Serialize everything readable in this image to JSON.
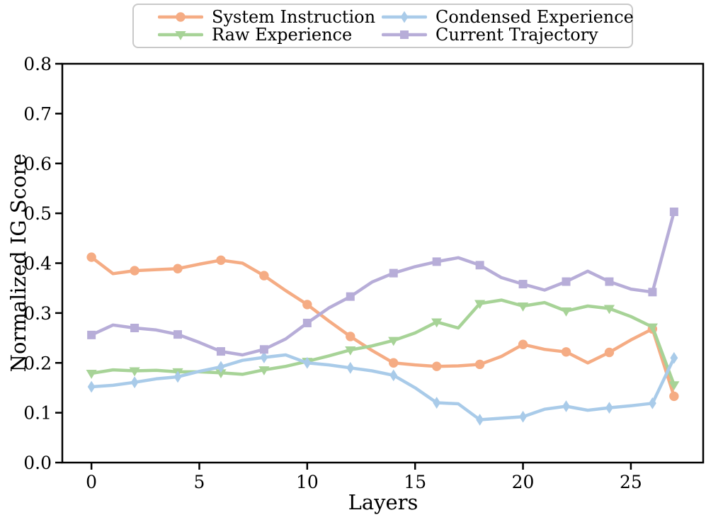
{
  "chart_data": {
    "type": "line",
    "title": "",
    "xlabel": "Layers",
    "ylabel": "Normalized IG Score",
    "xlim": [
      -1.35,
      28.35
    ],
    "ylim": [
      0.0,
      0.8
    ],
    "xticks": [
      0,
      5,
      10,
      15,
      20,
      25
    ],
    "yticks": [
      0.0,
      0.1,
      0.2,
      0.3,
      0.4,
      0.5,
      0.6,
      0.7,
      0.8
    ],
    "grid": false,
    "spine_color": "#000000",
    "text_color": "#000000",
    "legend": {
      "position": "top-outside",
      "columns": 2,
      "border_color": "#c9c9c9"
    },
    "marker_every": 2,
    "mark_last_point": true,
    "x": [
      0,
      1,
      2,
      3,
      4,
      5,
      6,
      7,
      8,
      9,
      10,
      11,
      12,
      13,
      14,
      15,
      16,
      17,
      18,
      19,
      20,
      21,
      22,
      23,
      24,
      25,
      26,
      27
    ],
    "series": [
      {
        "name": "System Instruction",
        "color": "#f5ac84",
        "marker": "circle",
        "values": [
          0.412,
          0.379,
          0.385,
          0.387,
          0.389,
          0.398,
          0.406,
          0.4,
          0.375,
          0.345,
          0.317,
          0.284,
          0.253,
          0.225,
          0.2,
          0.196,
          0.193,
          0.194,
          0.197,
          0.213,
          0.237,
          0.227,
          0.222,
          0.2,
          0.221,
          0.246,
          0.268,
          0.133
        ]
      },
      {
        "name": "Raw Experience",
        "color": "#a7d397",
        "marker": "triangle-down",
        "values": [
          0.179,
          0.186,
          0.184,
          0.185,
          0.182,
          0.182,
          0.18,
          0.177,
          0.186,
          0.193,
          0.203,
          0.214,
          0.226,
          0.234,
          0.245,
          0.26,
          0.282,
          0.27,
          0.319,
          0.326,
          0.314,
          0.321,
          0.304,
          0.314,
          0.309,
          0.293,
          0.272,
          0.156
        ]
      },
      {
        "name": "Condensed Experience",
        "color": "#a9cbe9",
        "marker": "thin-diamond",
        "values": [
          0.152,
          0.155,
          0.161,
          0.168,
          0.172,
          0.183,
          0.192,
          0.205,
          0.211,
          0.216,
          0.2,
          0.196,
          0.19,
          0.184,
          0.175,
          0.15,
          0.12,
          0.118,
          0.086,
          0.089,
          0.092,
          0.107,
          0.113,
          0.105,
          0.11,
          0.114,
          0.119,
          0.21
        ]
      },
      {
        "name": "Current Trajectory",
        "color": "#b7add8",
        "marker": "square",
        "values": [
          0.256,
          0.276,
          0.27,
          0.266,
          0.257,
          0.241,
          0.223,
          0.216,
          0.227,
          0.248,
          0.28,
          0.31,
          0.333,
          0.362,
          0.38,
          0.393,
          0.403,
          0.411,
          0.396,
          0.371,
          0.358,
          0.346,
          0.363,
          0.384,
          0.363,
          0.348,
          0.342,
          0.503
        ]
      }
    ]
  }
}
